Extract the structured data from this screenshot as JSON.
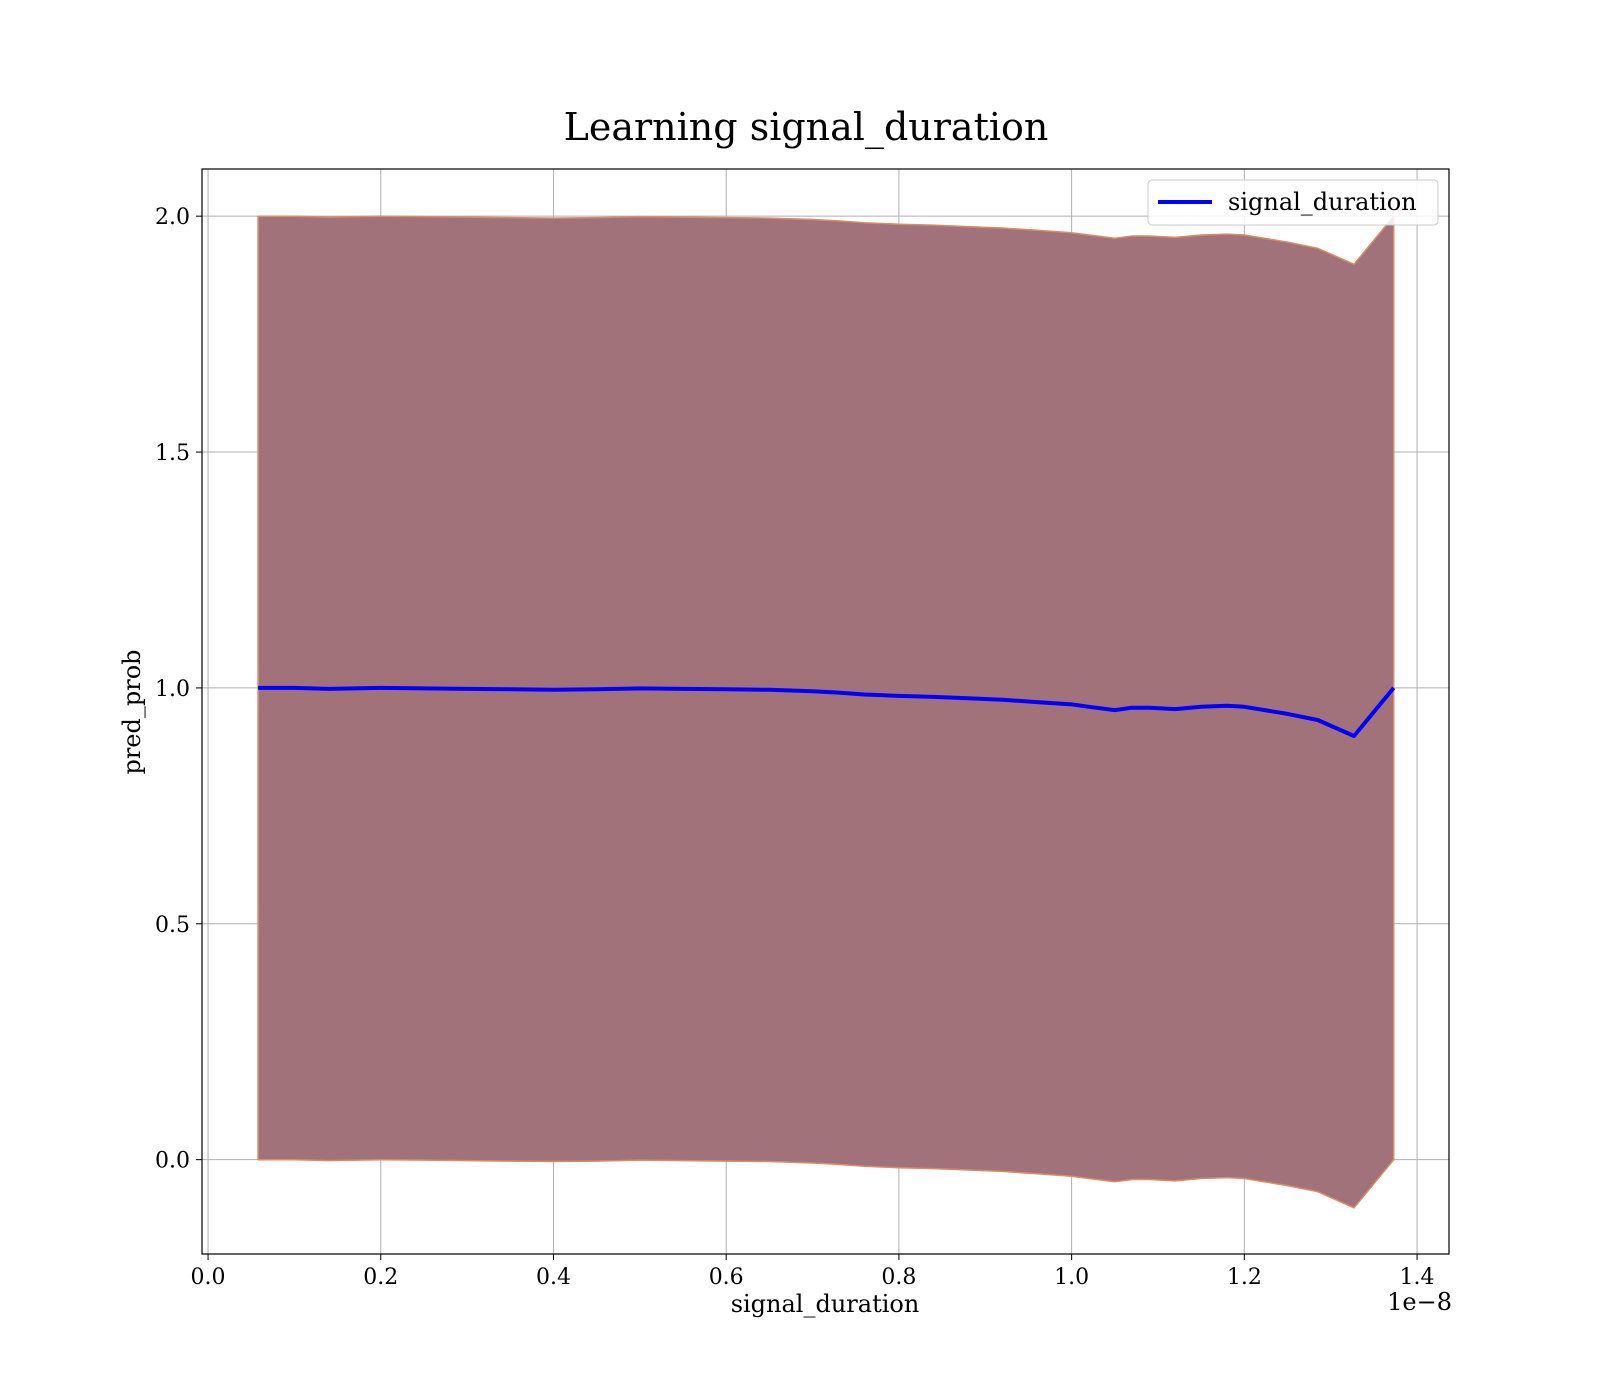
{
  "chart_data": {
    "type": "line",
    "title": "Learning signal_duration",
    "xlabel": "signal_duration",
    "ylabel": "pred_prob",
    "x_offset_label": "1e−8",
    "xlim": [
      -0.007,
      1.437
    ],
    "ylim": [
      -0.2,
      2.1
    ],
    "xticks": [
      0.0,
      0.2,
      0.4,
      0.6,
      0.8,
      1.0,
      1.2,
      1.4
    ],
    "xtick_labels": [
      "0.0",
      "0.2",
      "0.4",
      "0.6",
      "0.8",
      "1.0",
      "1.2",
      "1.4"
    ],
    "yticks": [
      0.0,
      0.5,
      1.0,
      1.5,
      2.0
    ],
    "ytick_labels": [
      "0.0",
      "0.5",
      "1.0",
      "1.5",
      "2.0"
    ],
    "grid": true,
    "legend_position": "top-right",
    "series": [
      {
        "name": "signal_duration",
        "color": "#0000ff",
        "x": [
          0.058,
          0.1,
          0.14,
          0.2,
          0.25,
          0.3,
          0.35,
          0.4,
          0.45,
          0.5,
          0.55,
          0.6,
          0.65,
          0.7,
          0.73,
          0.76,
          0.8,
          0.84,
          0.88,
          0.92,
          0.96,
          1.0,
          1.02,
          1.05,
          1.07,
          1.09,
          1.12,
          1.15,
          1.18,
          1.2,
          1.25,
          1.285,
          1.327,
          1.373
        ],
        "y": [
          1.0,
          1.0,
          0.998,
          1.0,
          0.999,
          0.998,
          0.997,
          0.996,
          0.997,
          0.999,
          0.998,
          0.997,
          0.996,
          0.993,
          0.99,
          0.986,
          0.983,
          0.981,
          0.978,
          0.975,
          0.97,
          0.965,
          0.96,
          0.953,
          0.958,
          0.958,
          0.955,
          0.96,
          0.962,
          0.96,
          0.945,
          0.932,
          0.898,
          1.0
        ]
      }
    ],
    "band": {
      "fill_color": "#a1727a",
      "edge_color": "#d98c6a",
      "x": [
        0.058,
        0.1,
        0.14,
        0.2,
        0.25,
        0.3,
        0.35,
        0.4,
        0.45,
        0.5,
        0.55,
        0.6,
        0.65,
        0.7,
        0.73,
        0.76,
        0.8,
        0.84,
        0.88,
        0.92,
        0.96,
        1.0,
        1.02,
        1.05,
        1.07,
        1.09,
        1.12,
        1.15,
        1.18,
        1.2,
        1.25,
        1.285,
        1.327,
        1.373
      ],
      "upper": [
        2.0,
        2.0,
        1.998,
        2.0,
        1.999,
        1.998,
        1.997,
        1.996,
        1.997,
        1.999,
        1.998,
        1.997,
        1.996,
        1.993,
        1.99,
        1.986,
        1.983,
        1.981,
        1.978,
        1.975,
        1.97,
        1.965,
        1.96,
        1.953,
        1.958,
        1.958,
        1.955,
        1.96,
        1.962,
        1.96,
        1.945,
        1.932,
        1.898,
        2.0
      ],
      "lower": [
        0.0,
        0.0,
        -0.002,
        0.0,
        -0.001,
        -0.002,
        -0.003,
        -0.004,
        -0.003,
        -0.001,
        -0.002,
        -0.003,
        -0.004,
        -0.007,
        -0.01,
        -0.014,
        -0.017,
        -0.019,
        -0.022,
        -0.025,
        -0.03,
        -0.035,
        -0.04,
        -0.047,
        -0.042,
        -0.042,
        -0.045,
        -0.04,
        -0.038,
        -0.04,
        -0.055,
        -0.068,
        -0.102,
        0.0
      ]
    }
  }
}
